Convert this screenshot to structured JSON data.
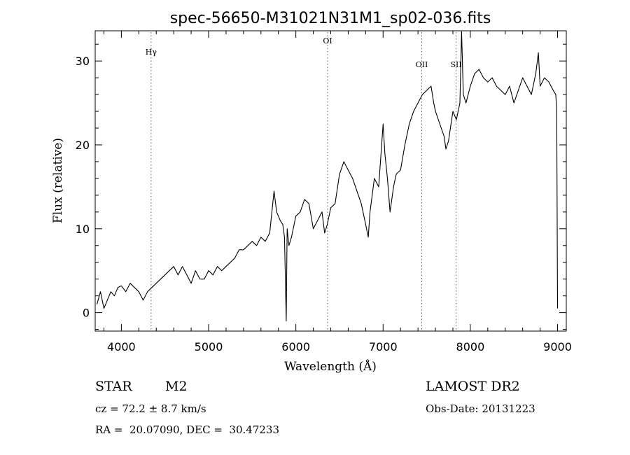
{
  "chart_data": {
    "type": "line",
    "title": "spec-56650-M31021N31M1_sp02-036.fits",
    "xlabel": "Wavelength (Å)",
    "ylabel": "Flux (relative)",
    "xlim": [
      3700,
      9100
    ],
    "ylim": [
      -2.2,
      33.6
    ],
    "x_ticks": [
      4000,
      5000,
      6000,
      7000,
      8000,
      9000
    ],
    "y_ticks": [
      0,
      10,
      20,
      30
    ],
    "grid": false,
    "line_color": "#000000",
    "spectral_lines": [
      {
        "label": "Hγ",
        "x": 4341
      },
      {
        "label": "OI",
        "x": 6364
      },
      {
        "label": "OII",
        "x": 7443
      },
      {
        "label": "SII",
        "x": 7837
      }
    ],
    "series": [
      {
        "x": [
          3720,
          3760,
          3800,
          3840,
          3880,
          3920,
          3960,
          4000,
          4050,
          4100,
          4150,
          4200,
          4250,
          4300,
          4350,
          4400,
          4450,
          4500,
          4550,
          4600,
          4650,
          4700,
          4750,
          4800,
          4850,
          4900,
          4950,
          5000,
          5050,
          5100,
          5150,
          5200,
          5250,
          5300,
          5350,
          5400,
          5450,
          5500,
          5550,
          5600,
          5650,
          5700,
          5750,
          5780,
          5820,
          5850,
          5870,
          5880,
          5890,
          5900,
          5920,
          5950,
          6000,
          6050,
          6100,
          6150,
          6200,
          6250,
          6300,
          6330,
          6360,
          6400,
          6450,
          6500,
          6550,
          6600,
          6650,
          6700,
          6750,
          6800,
          6830,
          6850,
          6900,
          6950,
          7000,
          7020,
          7050,
          7080,
          7120,
          7150,
          7200,
          7250,
          7300,
          7350,
          7400,
          7450,
          7500,
          7550,
          7580,
          7600,
          7650,
          7700,
          7720,
          7750,
          7800,
          7840,
          7880,
          7900,
          7920,
          7950,
          8000,
          8050,
          8100,
          8150,
          8200,
          8250,
          8300,
          8350,
          8400,
          8450,
          8500,
          8550,
          8600,
          8650,
          8700,
          8750,
          8780,
          8800,
          8850,
          8900,
          8950,
          8980,
          8990,
          9000
        ],
        "y": [
          1.0,
          2.5,
          0.5,
          1.5,
          2.5,
          2.0,
          3.0,
          3.2,
          2.5,
          3.5,
          3.0,
          2.5,
          1.5,
          2.5,
          3.0,
          3.5,
          4.0,
          4.5,
          5.0,
          5.5,
          4.5,
          5.5,
          4.5,
          3.5,
          5.0,
          4.0,
          4.0,
          5.0,
          4.5,
          5.5,
          5.0,
          5.5,
          6.0,
          6.5,
          7.5,
          7.5,
          8.0,
          8.5,
          8.0,
          9.0,
          8.5,
          9.5,
          14.5,
          12.0,
          11.0,
          10.5,
          9.0,
          4.0,
          -1.0,
          10.0,
          8.0,
          9.0,
          11.5,
          12.0,
          13.5,
          13.0,
          10.0,
          11.0,
          12.0,
          9.5,
          10.5,
          12.5,
          13.0,
          16.5,
          18.0,
          17.0,
          16.0,
          14.5,
          13.0,
          10.5,
          9.0,
          12.0,
          16.0,
          15.0,
          22.5,
          19.0,
          16.0,
          12.0,
          15.0,
          16.5,
          17.0,
          20.0,
          22.5,
          24.0,
          25.0,
          26.0,
          26.5,
          27.0,
          25.0,
          24.0,
          22.5,
          21.0,
          19.5,
          20.5,
          24.0,
          23.0,
          25.0,
          33.5,
          26.0,
          25.0,
          27.0,
          28.5,
          29.0,
          28.0,
          27.5,
          28.0,
          27.0,
          26.5,
          26.0,
          27.0,
          25.0,
          26.5,
          28.0,
          27.0,
          26.0,
          28.5,
          31.0,
          27.0,
          28.0,
          27.5,
          26.5,
          26.0,
          24.0,
          0.5
        ]
      }
    ]
  },
  "footer": {
    "object_class": "STAR",
    "subclass": "M2",
    "survey": "LAMOST DR2",
    "cz": "cz = 72.2 ± 8.7 km/s",
    "obs_date": "Obs-Date: 20131223",
    "coords": "RA =  20.07090, DEC =  30.47233"
  }
}
